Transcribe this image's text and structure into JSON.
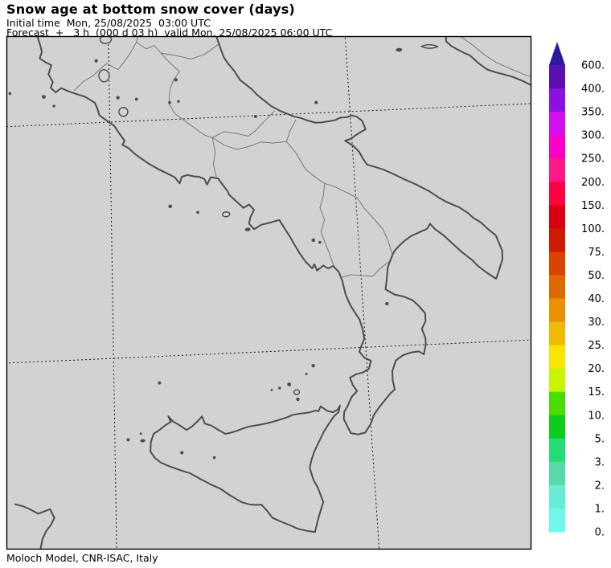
{
  "header": {
    "title": "Snow age at bottom snow cover (days)",
    "initial_time": "Initial time  Mon, 25/08/2025  03:00 UTC",
    "forecast": "Forecast  +   3 h  (000 d 03 h)  valid Mon, 25/08/2025 06:00 UTC"
  },
  "footer": {
    "credit": "Moloch Model, CNR-ISAC, Italy"
  },
  "colorbar": {
    "tick_labels": [
      "600.",
      "400.",
      "350.",
      "300.",
      "250.",
      "200.",
      "150.",
      "100.",
      "75.",
      "50.",
      "40.",
      "30.",
      "25.",
      "20.",
      "15.",
      "10.",
      "5.",
      "3.",
      "2.",
      "1.",
      "0."
    ],
    "segment_colors_top_to_bottom": [
      "#5c10b2",
      "#8b11e0",
      "#d410ef",
      "#fd00c8",
      "#ff1987",
      "#fd0341",
      "#d80012",
      "#cc1b00",
      "#d84300",
      "#e06800",
      "#ea9100",
      "#efba06",
      "#f7e600",
      "#c8f400",
      "#4ade00",
      "#0ccc1e",
      "#22dd77",
      "#57d9a8",
      "#66eed4",
      "#70f7ee"
    ],
    "arrow_color": "#31199d"
  },
  "map": {
    "land_sea_color": "#d2d2d2",
    "coastline_color": "#4d4d4d",
    "region_border_color": "#6e6e6e",
    "graticule_color": "#1a1a1a",
    "frame_color": "#000000"
  }
}
